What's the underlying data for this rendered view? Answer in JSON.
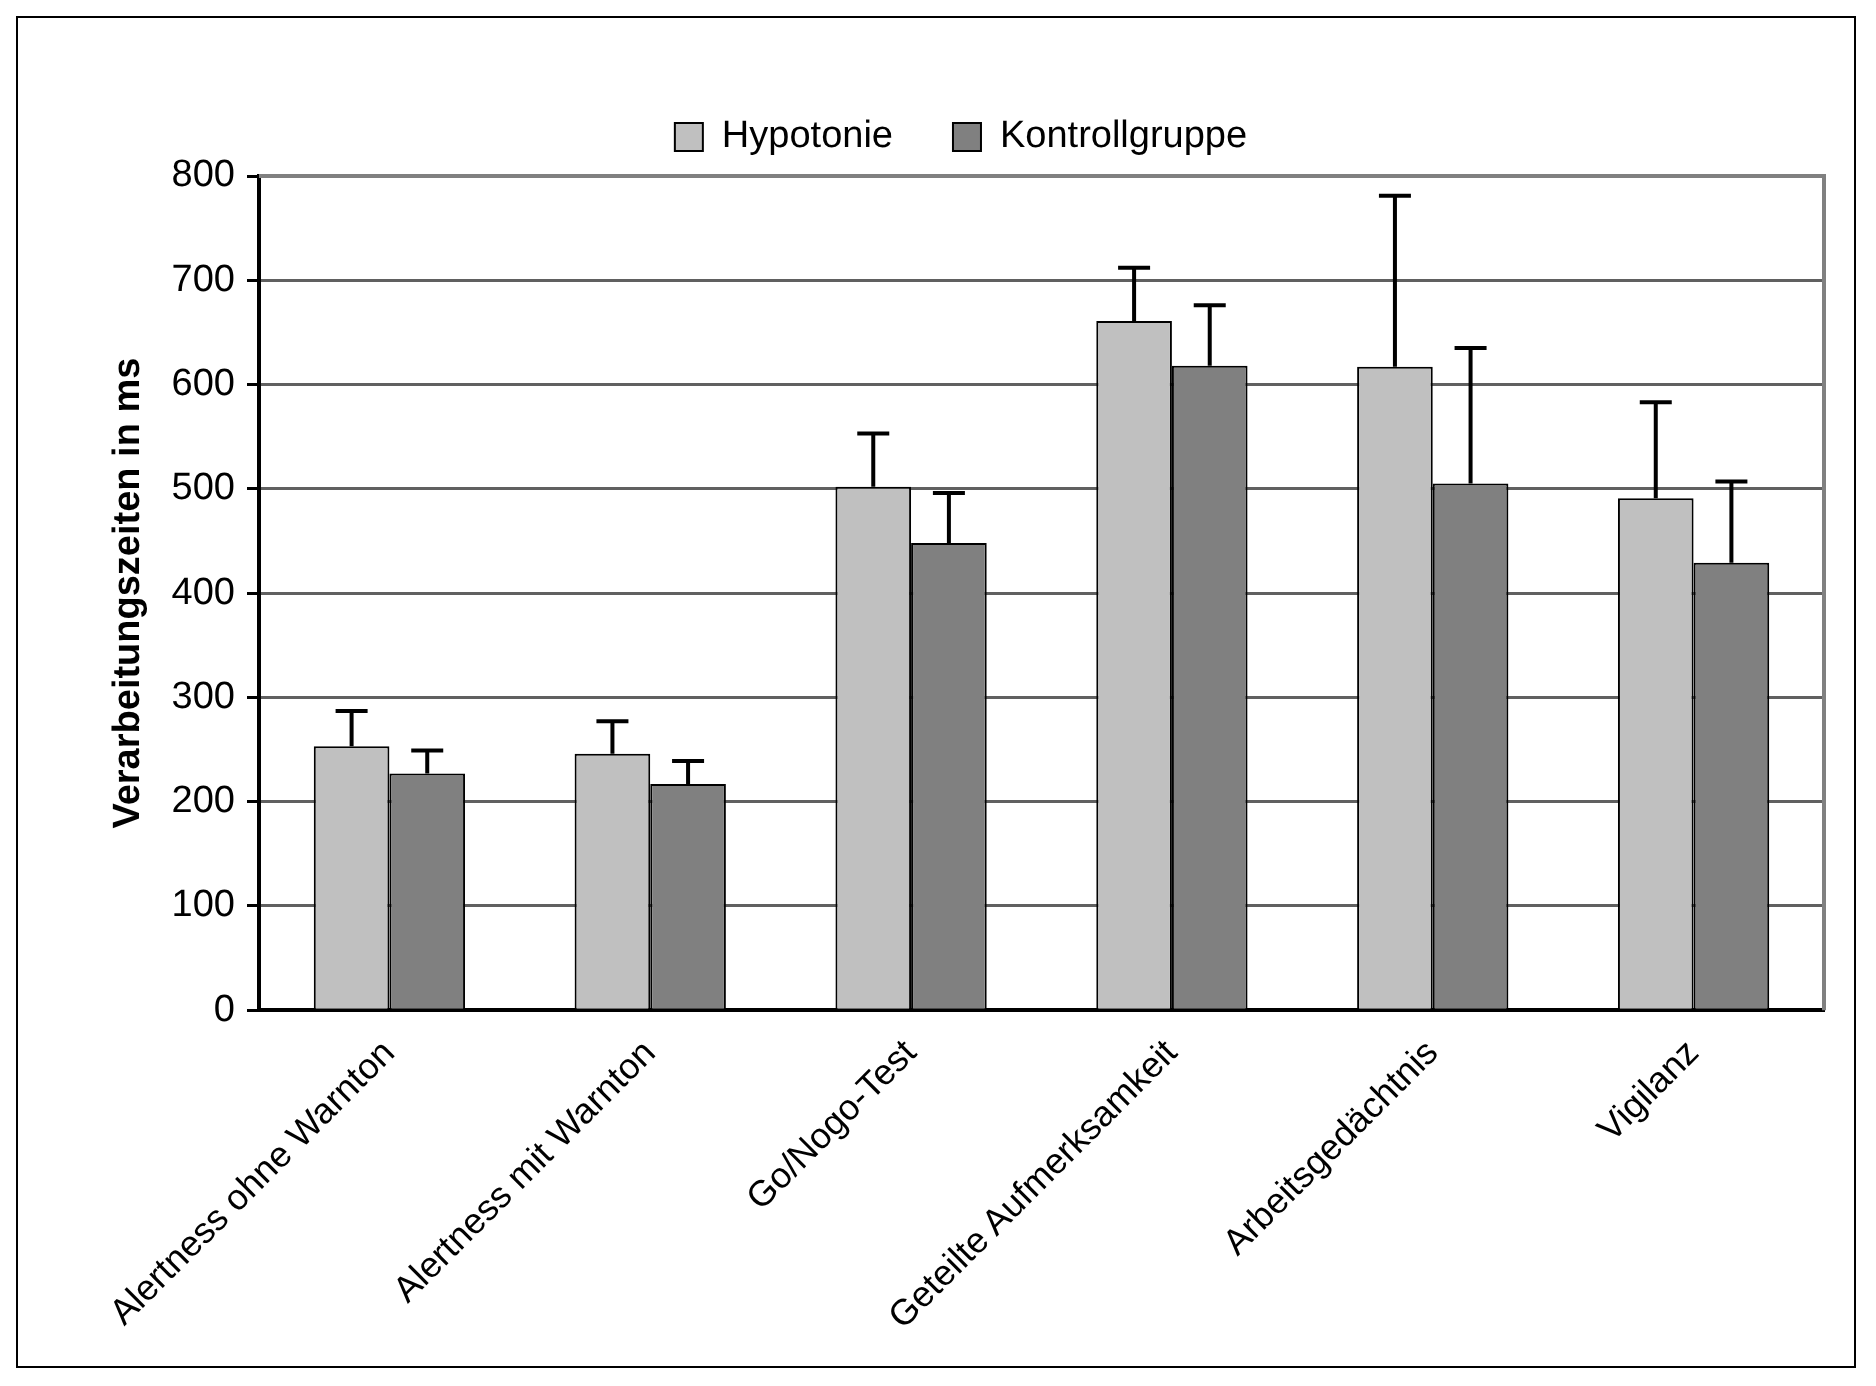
{
  "chart_data": {
    "type": "bar",
    "ylabel": "Verarbeitungszeiten in ms",
    "categories": [
      "Alertness ohne Warnton",
      "Alertness mit Warnton",
      "Go/Nogo-Test",
      "Geteilte Aufmerksamkeit",
      "Arbeitsgedächtnis",
      "Vigilanz"
    ],
    "series": [
      {
        "name": "Hypotonie",
        "color": "#c0c0c0",
        "values": [
          253,
          246,
          502,
          661,
          617,
          491
        ],
        "errors": [
          [
            253,
            287
          ],
          [
            246,
            277
          ],
          [
            502,
            553
          ],
          [
            661,
            712
          ],
          [
            617,
            781
          ],
          [
            491,
            583
          ]
        ]
      },
      {
        "name": "Kontrollgruppe",
        "color": "#808080",
        "values": [
          227,
          217,
          448,
          618,
          505,
          429
        ],
        "errors": [
          [
            227,
            249
          ],
          [
            217,
            239
          ],
          [
            448,
            496
          ],
          [
            618,
            676
          ],
          [
            505,
            635
          ],
          [
            429,
            507
          ]
        ]
      }
    ],
    "ylim": [
      0,
      800
    ],
    "yticks": [
      0,
      100,
      200,
      300,
      400,
      500,
      600,
      700,
      800
    ],
    "grid": "y",
    "legend": "top"
  }
}
